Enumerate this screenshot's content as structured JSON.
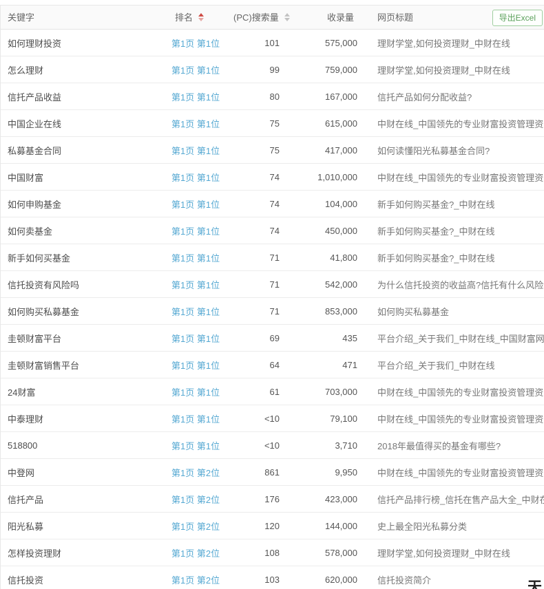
{
  "colors": {
    "link_blue": "#55a8d2",
    "export_green": "#5ba05b",
    "sort_active_red": "#cf4a44",
    "sort_inactive_gray": "#c3c3c3",
    "header_bg": "#fafafa"
  },
  "table": {
    "headers": {
      "keyword": "关键字",
      "rank": "排名",
      "search_volume": "(PC)搜索量",
      "indexed": "收录量",
      "page_title": "网页标题"
    },
    "sort_state": {
      "rank": "ascending-active",
      "search_volume": "inactive"
    },
    "export_label": "导出Excel",
    "rows": [
      {
        "keyword": "如何理财投资",
        "rank": "第1页 第1位",
        "search": "101",
        "indexed": "575,000",
        "title": "理财学堂,如何投资理财_中财在线"
      },
      {
        "keyword": "怎么理财",
        "rank": "第1页 第1位",
        "search": "99",
        "indexed": "759,000",
        "title": "理财学堂,如何投资理财_中财在线"
      },
      {
        "keyword": "信托产品收益",
        "rank": "第1页 第1位",
        "search": "80",
        "indexed": "167,000",
        "title": "信托产品如何分配收益?"
      },
      {
        "keyword": "中国企业在线",
        "rank": "第1页 第1位",
        "search": "75",
        "indexed": "615,000",
        "title": "中财在线_中国领先的专业财富投资管理资产"
      },
      {
        "keyword": "私募基金合同",
        "rank": "第1页 第1位",
        "search": "75",
        "indexed": "417,000",
        "title": "如何读懂阳光私募基金合同?"
      },
      {
        "keyword": "中国财富",
        "rank": "第1页 第1位",
        "search": "74",
        "indexed": "1,010,000",
        "title": "中财在线_中国领先的专业财富投资管理资产"
      },
      {
        "keyword": "如何申购基金",
        "rank": "第1页 第1位",
        "search": "74",
        "indexed": "104,000",
        "title": "新手如何购买基金?_中财在线"
      },
      {
        "keyword": "如何卖基金",
        "rank": "第1页 第1位",
        "search": "74",
        "indexed": "450,000",
        "title": "新手如何购买基金?_中财在线"
      },
      {
        "keyword": "新手如何买基金",
        "rank": "第1页 第1位",
        "search": "71",
        "indexed": "41,800",
        "title": "新手如何购买基金?_中财在线"
      },
      {
        "keyword": "信托投资有风险吗",
        "rank": "第1页 第1位",
        "search": "71",
        "indexed": "542,000",
        "title": "为什么信托投资的收益高?信托有什么风险?"
      },
      {
        "keyword": "如何购买私募基金",
        "rank": "第1页 第1位",
        "search": "71",
        "indexed": "853,000",
        "title": "如何购买私募基金"
      },
      {
        "keyword": "圭顿财富平台",
        "rank": "第1页 第1位",
        "search": "69",
        "indexed": "435",
        "title": "平台介绍_关于我们_中财在线_中国财富网"
      },
      {
        "keyword": "圭顿财富销售平台",
        "rank": "第1页 第1位",
        "search": "64",
        "indexed": "471",
        "title": "平台介绍_关于我们_中财在线"
      },
      {
        "keyword": "24财富",
        "rank": "第1页 第1位",
        "search": "61",
        "indexed": "703,000",
        "title": "中财在线_中国领先的专业财富投资管理资产"
      },
      {
        "keyword": "中泰理财",
        "rank": "第1页 第1位",
        "search": "<10",
        "indexed": "79,100",
        "title": "中财在线_中国领先的专业财富投资管理资产"
      },
      {
        "keyword": "518800",
        "rank": "第1页 第1位",
        "search": "<10",
        "indexed": "3,710",
        "title": "2018年最值得买的基金有哪些?"
      },
      {
        "keyword": "中登网",
        "rank": "第1页 第2位",
        "search": "861",
        "indexed": "9,950",
        "title": "中财在线_中国领先的专业财富投资管理资产"
      },
      {
        "keyword": "信托产品",
        "rank": "第1页 第2位",
        "search": "176",
        "indexed": "423,000",
        "title": "信托产品排行榜_信托在售产品大全_中财在线"
      },
      {
        "keyword": "阳光私募",
        "rank": "第1页 第2位",
        "search": "120",
        "indexed": "144,000",
        "title": "史上最全阳光私募分类"
      },
      {
        "keyword": "怎样投资理财",
        "rank": "第1页 第2位",
        "search": "108",
        "indexed": "578,000",
        "title": "理财学堂,如何投资理财_中财在线"
      },
      {
        "keyword": "信托投资",
        "rank": "第1页 第2位",
        "search": "103",
        "indexed": "620,000",
        "title": "信托投资简介"
      }
    ]
  },
  "corner_fragment": "天"
}
